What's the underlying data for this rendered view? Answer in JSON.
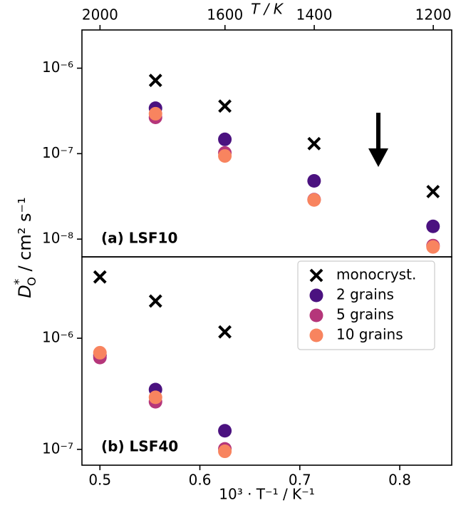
{
  "chart_data": [
    {
      "type": "scatter",
      "panel_label": "(a) LSF10",
      "x2label": "T / K",
      "x2ticks": [
        2000,
        1600,
        1400,
        1200
      ],
      "x2lim": [
        2075,
        1174
      ],
      "x2scale": "reciprocal",
      "ylabel": {
        "symbol": "D",
        "sub": "O",
        "sup": "*",
        "unit": " / cm² s⁻¹"
      },
      "xlim": [
        0.482,
        0.852
      ],
      "yscale": "log",
      "ylim": [
        6.2e-09,
        2.8e-06
      ],
      "yticks": [
        {
          "value": 1e-08,
          "label": "10⁻⁸"
        },
        {
          "value": 1e-07,
          "label": "10⁻⁷"
        },
        {
          "value": 1e-06,
          "label": "10⁻⁶"
        }
      ],
      "x": [
        0.5,
        0.5556,
        0.625,
        0.7143,
        0.8333
      ],
      "series": [
        {
          "name": "monocryst.",
          "color": "#000000",
          "marker": "x",
          "values": [
            null,
            7.2e-07,
            3.6e-07,
            1.31e-07,
            3.6e-08
          ]
        },
        {
          "name": "2 grains",
          "color": "#4b1280",
          "marker": "o",
          "values": [
            null,
            3.4e-07,
            1.47e-07,
            4.8e-08,
            1.41e-08
          ]
        },
        {
          "name": "5 grains",
          "color": "#b5367a",
          "marker": "o",
          "values": [
            null,
            2.66e-07,
            1.02e-07,
            2.9e-08,
            8.4e-09
          ]
        },
        {
          "name": "10 grains",
          "color": "#f8845f",
          "marker": "o",
          "values": [
            null,
            2.93e-07,
            9.4e-08,
            2.87e-08,
            8.1e-09
          ]
        }
      ]
    },
    {
      "type": "scatter",
      "panel_label": "(b) LSF40",
      "xlabel": "10³ · T⁻¹ / K⁻¹",
      "xlim": [
        0.482,
        0.852
      ],
      "xticks": [
        0.5,
        0.6,
        0.7,
        0.8
      ],
      "yscale": "log",
      "ylim": [
        7.2e-08,
        5.4e-06
      ],
      "yticks": [
        {
          "value": 1e-07,
          "label": "10⁻⁷"
        },
        {
          "value": 1e-06,
          "label": "10⁻⁶"
        }
      ],
      "legend": "upper right",
      "x": [
        0.5,
        0.5556,
        0.625
      ],
      "series": [
        {
          "name": "monocryst.",
          "color": "#000000",
          "marker": "x",
          "values": [
            3.56e-06,
            2.16e-06,
            1.14e-06
          ]
        },
        {
          "name": "2 grains",
          "color": "#4b1280",
          "marker": "o",
          "values": [
            7e-07,
            3.45e-07,
            1.47e-07
          ]
        },
        {
          "name": "5 grains",
          "color": "#b5367a",
          "marker": "o",
          "values": [
            6.7e-07,
            2.68e-07,
            1.01e-07
          ]
        },
        {
          "name": "10 grains",
          "color": "#f8845f",
          "marker": "o",
          "values": [
            7.4e-07,
            2.94e-07,
            9.6e-08
          ]
        }
      ]
    }
  ]
}
